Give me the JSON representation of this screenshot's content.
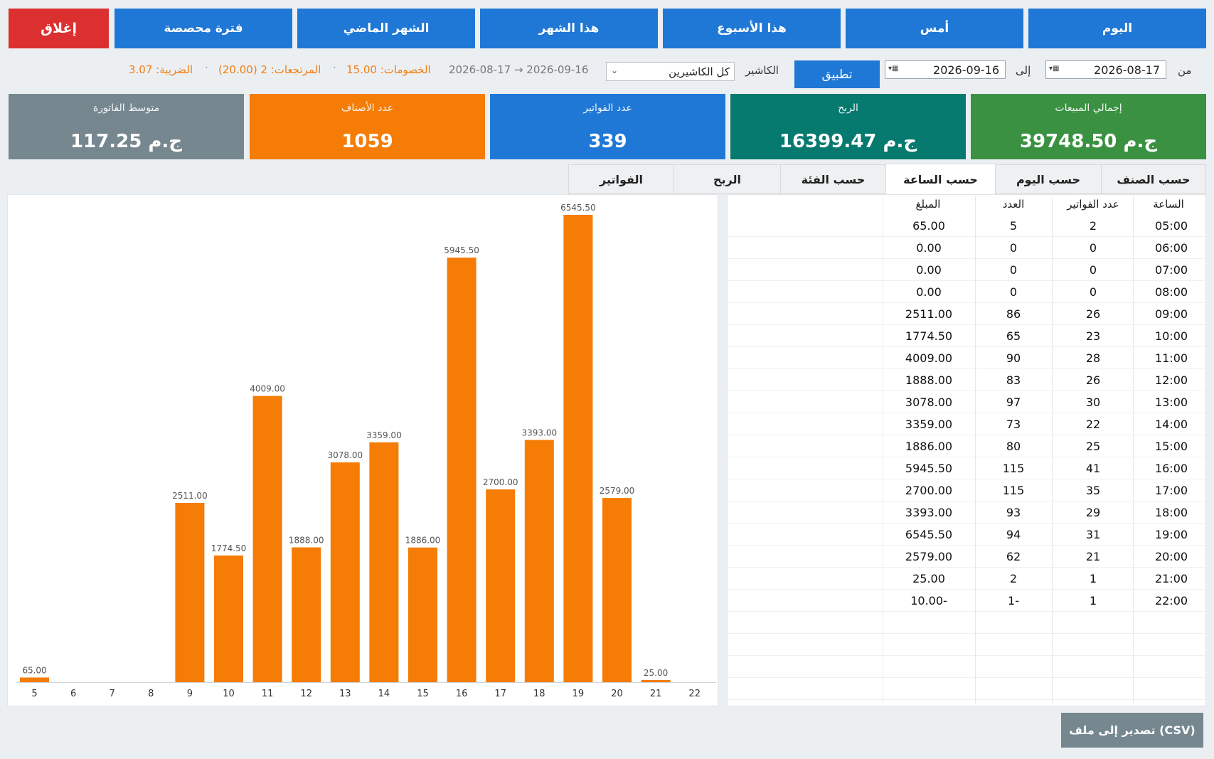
{
  "period_buttons": {
    "today": "اليوم",
    "yesterday": "أمس",
    "this_week": "هذا الأسبوع",
    "this_month": "هذا الشهر",
    "last_month": "الشهر الماضي",
    "custom_period": "فترة محصصة",
    "close": "إغلاق"
  },
  "filters": {
    "from_label": "من",
    "from_date": "2026-08-17",
    "to_label": "إلى",
    "to_date": "2026-09-16",
    "apply": "تطبيق",
    "cashier_label": "الكاشير",
    "cashier_value": "كل الكاشيرين",
    "range_text": "2026-08-17  →  2026-09-16",
    "discounts": "الخصومات: 15.00",
    "returns": "المرتجعات: 2 (20.00)",
    "tax": "الضريبة: 3.07"
  },
  "cards": [
    {
      "title": "إجمالي المبيعات",
      "value": "39748.50 ج.م",
      "color": "#3b9142"
    },
    {
      "title": "الربح",
      "value": "16399.47 ج.م",
      "color": "#067a6e"
    },
    {
      "title": "عدد الفواتير",
      "value": "339",
      "color": "#1f78d6"
    },
    {
      "title": "عدد الأصناف",
      "value": "1059",
      "color": "#f57c05"
    },
    {
      "title": "متوسط الفاتورة",
      "value": "117.25 ج.م",
      "color": "#76878f"
    }
  ],
  "tabs": {
    "by_item": "حسب الصنف",
    "by_day": "حسب اليوم",
    "by_hour": "حسب الساعة",
    "by_category": "حسب الفئة",
    "profit": "الربح",
    "invoices": "الفواتير"
  },
  "table": {
    "headers": {
      "hour": "الساعة",
      "invoices": "عدد الفواتير",
      "count": "العدد",
      "amount": "المبلغ"
    },
    "rows": [
      {
        "hour": "05:00",
        "invoices": "2",
        "count": "5",
        "amount": "65.00"
      },
      {
        "hour": "06:00",
        "invoices": "0",
        "count": "0",
        "amount": "0.00"
      },
      {
        "hour": "07:00",
        "invoices": "0",
        "count": "0",
        "amount": "0.00"
      },
      {
        "hour": "08:00",
        "invoices": "0",
        "count": "0",
        "amount": "0.00"
      },
      {
        "hour": "09:00",
        "invoices": "26",
        "count": "86",
        "amount": "2511.00"
      },
      {
        "hour": "10:00",
        "invoices": "23",
        "count": "65",
        "amount": "1774.50"
      },
      {
        "hour": "11:00",
        "invoices": "28",
        "count": "90",
        "amount": "4009.00"
      },
      {
        "hour": "12:00",
        "invoices": "26",
        "count": "83",
        "amount": "1888.00"
      },
      {
        "hour": "13:00",
        "invoices": "30",
        "count": "97",
        "amount": "3078.00"
      },
      {
        "hour": "14:00",
        "invoices": "22",
        "count": "73",
        "amount": "3359.00"
      },
      {
        "hour": "15:00",
        "invoices": "25",
        "count": "80",
        "amount": "1886.00"
      },
      {
        "hour": "16:00",
        "invoices": "41",
        "count": "115",
        "amount": "5945.50"
      },
      {
        "hour": "17:00",
        "invoices": "35",
        "count": "115",
        "amount": "2700.00"
      },
      {
        "hour": "18:00",
        "invoices": "29",
        "count": "93",
        "amount": "3393.00"
      },
      {
        "hour": "19:00",
        "invoices": "31",
        "count": "94",
        "amount": "6545.50"
      },
      {
        "hour": "20:00",
        "invoices": "21",
        "count": "62",
        "amount": "2579.00"
      },
      {
        "hour": "21:00",
        "invoices": "1",
        "count": "2",
        "amount": "25.00"
      },
      {
        "hour": "22:00",
        "invoices": "1",
        "count": "1-",
        "amount": "10.00-"
      }
    ]
  },
  "export_button": "تصدير إلى ملف (CSV)",
  "chart_data": {
    "type": "bar",
    "categories": [
      "5",
      "6",
      "7",
      "8",
      "9",
      "10",
      "11",
      "12",
      "13",
      "14",
      "15",
      "16",
      "17",
      "18",
      "19",
      "20",
      "21",
      "22"
    ],
    "values": [
      65.0,
      0,
      0,
      0,
      2511.0,
      1774.5,
      4009.0,
      1888.0,
      3078.0,
      3359.0,
      1886.0,
      5945.5,
      2700.0,
      3393.0,
      6545.5,
      2579.0,
      25.0,
      -10.0
    ],
    "data_labels": [
      "65.00",
      "",
      "",
      "",
      "2511.00",
      "1774.50",
      "4009.00",
      "1888.00",
      "3078.00",
      "3359.00",
      "1886.00",
      "5945.50",
      "2700.00",
      "3393.00",
      "6545.50",
      "2579.00",
      "25.00",
      ""
    ],
    "bar_color": "#f57c05",
    "grid": false,
    "ylim": [
      0,
      6545.5
    ]
  }
}
